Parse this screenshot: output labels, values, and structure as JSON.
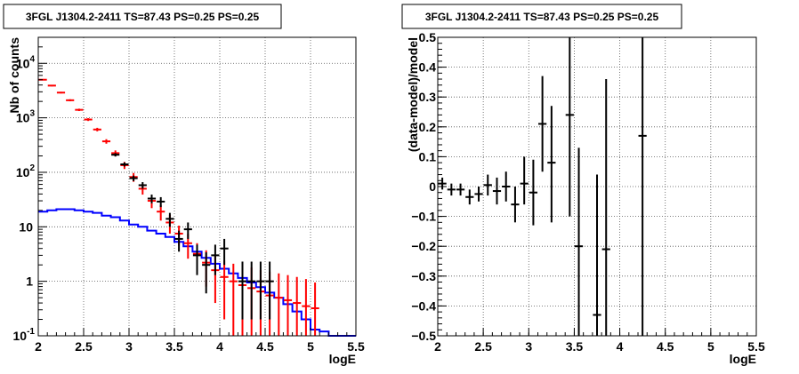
{
  "chart_data": [
    {
      "type": "scatter",
      "title": "3FGL J1304.2-2411 TS=87.43 PS=0.25 PS=0.25",
      "xlabel": "logE",
      "ylabel": "Nb of counts",
      "xlim": [
        2,
        5.5
      ],
      "ylim": [
        0.1,
        30000
      ],
      "yscale": "log",
      "grid": true,
      "x_ticks": [
        2,
        2.5,
        3,
        3.5,
        4,
        4.5,
        5,
        5.5
      ],
      "x_tick_labels": [
        "2",
        "2.5",
        "3",
        "3.5",
        "4",
        "4.5",
        "5",
        "5.5"
      ],
      "y_ticks": [
        0.1,
        1,
        10,
        100,
        1000,
        10000
      ],
      "y_tick_labels": [
        {
          "base": "10",
          "exp": "-1"
        },
        {
          "base": "1",
          "exp": ""
        },
        {
          "base": "10",
          "exp": ""
        },
        {
          "base": "10",
          "exp": "2"
        },
        {
          "base": "10",
          "exp": "3"
        },
        {
          "base": "10",
          "exp": "4"
        }
      ],
      "series": [
        {
          "color": "#0000ff",
          "style": "step",
          "edges": [
            2.0,
            2.1,
            2.2,
            2.3,
            2.4,
            2.5,
            2.6,
            2.7,
            2.8,
            2.9,
            3.0,
            3.1,
            3.2,
            3.3,
            3.4,
            3.5,
            3.6,
            3.7,
            3.8,
            3.9,
            4.0,
            4.1,
            4.2,
            4.3,
            4.4,
            4.5,
            4.6,
            4.7,
            4.8,
            4.9,
            5.0,
            5.1,
            5.2,
            5.3,
            5.4,
            5.5
          ],
          "values": [
            19,
            20,
            21,
            21,
            20,
            19,
            18,
            16,
            15,
            13,
            11,
            10,
            8.5,
            7.5,
            6.5,
            5.3,
            4.4,
            3.5,
            2.7,
            2.1,
            1.7,
            1.4,
            1.15,
            0.95,
            0.78,
            0.62,
            0.5,
            0.38,
            0.28,
            0.2,
            0.13,
            0.12,
            0.1,
            0.1,
            0.1
          ]
        },
        {
          "color": "#ff0000",
          "style": "errorbar",
          "points": [
            {
              "x": 2.05,
              "y": 5000,
              "lo": 4860,
              "hi": 5140
            },
            {
              "x": 2.15,
              "y": 3900,
              "lo": 3780,
              "hi": 4020
            },
            {
              "x": 2.25,
              "y": 2900,
              "lo": 2800,
              "hi": 3000
            },
            {
              "x": 2.35,
              "y": 2100,
              "lo": 2010,
              "hi": 2190
            },
            {
              "x": 2.45,
              "y": 1400,
              "lo": 1330,
              "hi": 1470
            },
            {
              "x": 2.55,
              "y": 930,
              "lo": 875,
              "hi": 985
            },
            {
              "x": 2.65,
              "y": 610,
              "lo": 565,
              "hi": 655
            },
            {
              "x": 2.75,
              "y": 370,
              "lo": 335,
              "hi": 405
            },
            {
              "x": 2.85,
              "y": 225,
              "lo": 198,
              "hi": 252
            },
            {
              "x": 2.95,
              "y": 135,
              "lo": 115,
              "hi": 155
            },
            {
              "x": 3.05,
              "y": 82,
              "lo": 67,
              "hi": 97
            },
            {
              "x": 3.15,
              "y": 50,
              "lo": 39,
              "hi": 61
            },
            {
              "x": 3.25,
              "y": 30,
              "lo": 22,
              "hi": 38
            },
            {
              "x": 3.35,
              "y": 19,
              "lo": 13,
              "hi": 25
            },
            {
              "x": 3.45,
              "y": 12,
              "lo": 7.5,
              "hi": 16.5
            },
            {
              "x": 3.55,
              "y": 7.5,
              "lo": 4.5,
              "hi": 10.5
            },
            {
              "x": 3.65,
              "y": 5,
              "lo": 2.6,
              "hi": 7.4
            },
            {
              "x": 3.75,
              "y": 3.2,
              "lo": 1.4,
              "hi": 5
            },
            {
              "x": 3.85,
              "y": 2.2,
              "lo": 0.8,
              "hi": 3.7
            },
            {
              "x": 3.95,
              "y": 1.6,
              "lo": 0.4,
              "hi": 2.9
            },
            {
              "x": 4.05,
              "y": 1.2,
              "lo": 0.2,
              "hi": 2.4
            },
            {
              "x": 4.15,
              "y": 1.0,
              "lo": 0.1,
              "hi": 2.1
            },
            {
              "x": 4.25,
              "y": 0.85,
              "lo": 0.1,
              "hi": 1.9
            },
            {
              "x": 4.35,
              "y": 0.75,
              "lo": 0.1,
              "hi": 1.8
            },
            {
              "x": 4.45,
              "y": 0.65,
              "lo": 0.1,
              "hi": 1.6
            },
            {
              "x": 4.55,
              "y": 0.55,
              "lo": 0.1,
              "hi": 1.5
            },
            {
              "x": 4.65,
              "y": 0.5,
              "lo": 0.1,
              "hi": 1.4
            },
            {
              "x": 4.75,
              "y": 0.45,
              "lo": 0.1,
              "hi": 1.3
            },
            {
              "x": 4.85,
              "y": 0.4,
              "lo": 0.1,
              "hi": 1.2
            },
            {
              "x": 4.95,
              "y": 0.35,
              "lo": 0.1,
              "hi": 1.1
            },
            {
              "x": 5.05,
              "y": 0.32,
              "lo": 0.1,
              "hi": 0.95
            }
          ]
        },
        {
          "color": "#000000",
          "style": "errorbar",
          "points": [
            {
              "x": 2.85,
              "y": 210,
              "lo": 195,
              "hi": 225
            },
            {
              "x": 2.95,
              "y": 140,
              "lo": 128,
              "hi": 152
            },
            {
              "x": 3.05,
              "y": 78,
              "lo": 69,
              "hi": 87
            },
            {
              "x": 3.15,
              "y": 58,
              "lo": 50,
              "hi": 66
            },
            {
              "x": 3.25,
              "y": 33,
              "lo": 27,
              "hi": 39
            },
            {
              "x": 3.35,
              "y": 29,
              "lo": 23,
              "hi": 35
            },
            {
              "x": 3.45,
              "y": 14,
              "lo": 10,
              "hi": 18
            },
            {
              "x": 3.55,
              "y": 6,
              "lo": 3.5,
              "hi": 8.5
            },
            {
              "x": 3.65,
              "y": 9,
              "lo": 6,
              "hi": 12
            },
            {
              "x": 3.75,
              "y": 3,
              "lo": 1.3,
              "hi": 4.7
            },
            {
              "x": 3.85,
              "y": 2,
              "lo": 0.6,
              "hi": 3.4
            },
            {
              "x": 3.95,
              "y": 3,
              "lo": 1.3,
              "hi": 4.7
            },
            {
              "x": 4.05,
              "y": 4,
              "lo": 2,
              "hi": 6
            },
            {
              "x": 4.25,
              "y": 1,
              "lo": 0.2,
              "hi": 2.3
            },
            {
              "x": 4.35,
              "y": 1,
              "lo": 0.2,
              "hi": 2.3
            },
            {
              "x": 4.45,
              "y": 1,
              "lo": 0.2,
              "hi": 2.3
            },
            {
              "x": 4.55,
              "y": 1,
              "lo": 0.2,
              "hi": 2.3
            }
          ]
        }
      ]
    },
    {
      "type": "scatter",
      "title": "3FGL J1304.2-2411 TS=87.43 PS=0.25 PS=0.25",
      "xlabel": "logE",
      "ylabel": "(data-model)/model",
      "xlim": [
        2,
        5.5
      ],
      "ylim": [
        -0.5,
        0.5
      ],
      "grid": true,
      "x_ticks": [
        2,
        2.5,
        3,
        3.5,
        4,
        4.5,
        5,
        5.5
      ],
      "x_tick_labels": [
        "2",
        "2.5",
        "3",
        "3.5",
        "4",
        "4.5",
        "5",
        "5.5"
      ],
      "y_ticks": [
        -0.5,
        -0.4,
        -0.3,
        -0.2,
        -0.1,
        0,
        0.1,
        0.2,
        0.3,
        0.4,
        0.5
      ],
      "y_tick_labels": [
        "−0.5",
        "−0.4",
        "−0.3",
        "−0.2",
        "−0.1",
        "0",
        "0.1",
        "0.2",
        "0.3",
        "0.4",
        "0.5"
      ],
      "series": [
        {
          "color": "#000000",
          "style": "errorbar",
          "points": [
            {
              "x": 2.05,
              "y": 0.01,
              "lo": -0.01,
              "hi": 0.03
            },
            {
              "x": 2.15,
              "y": -0.01,
              "lo": -0.03,
              "hi": 0.01
            },
            {
              "x": 2.25,
              "y": -0.01,
              "lo": -0.03,
              "hi": 0.01
            },
            {
              "x": 2.35,
              "y": -0.035,
              "lo": -0.06,
              "hi": -0.01
            },
            {
              "x": 2.45,
              "y": -0.025,
              "lo": -0.05,
              "hi": 0.0
            },
            {
              "x": 2.55,
              "y": 0.005,
              "lo": -0.03,
              "hi": 0.04
            },
            {
              "x": 2.65,
              "y": -0.015,
              "lo": -0.06,
              "hi": 0.03
            },
            {
              "x": 2.75,
              "y": 0.0,
              "lo": -0.05,
              "hi": 0.05
            },
            {
              "x": 2.85,
              "y": -0.06,
              "lo": -0.12,
              "hi": 0.0
            },
            {
              "x": 2.95,
              "y": 0.01,
              "lo": -0.06,
              "hi": 0.1
            },
            {
              "x": 3.05,
              "y": -0.02,
              "lo": -0.13,
              "hi": 0.09
            },
            {
              "x": 3.15,
              "y": 0.21,
              "lo": 0.05,
              "hi": 0.37
            },
            {
              "x": 3.25,
              "y": 0.08,
              "lo": -0.12,
              "hi": 0.27
            },
            {
              "x": 3.45,
              "y": 0.24,
              "lo": -0.1,
              "hi": 0.5
            },
            {
              "x": 3.55,
              "y": -0.2,
              "lo": -0.5,
              "hi": 0.13
            },
            {
              "x": 3.75,
              "y": -0.43,
              "lo": -0.5,
              "hi": 0.04
            },
            {
              "x": 3.85,
              "y": -0.21,
              "lo": -0.5,
              "hi": 0.36
            },
            {
              "x": 4.25,
              "y": 0.17,
              "lo": -0.5,
              "hi": 0.5
            }
          ]
        }
      ]
    }
  ]
}
